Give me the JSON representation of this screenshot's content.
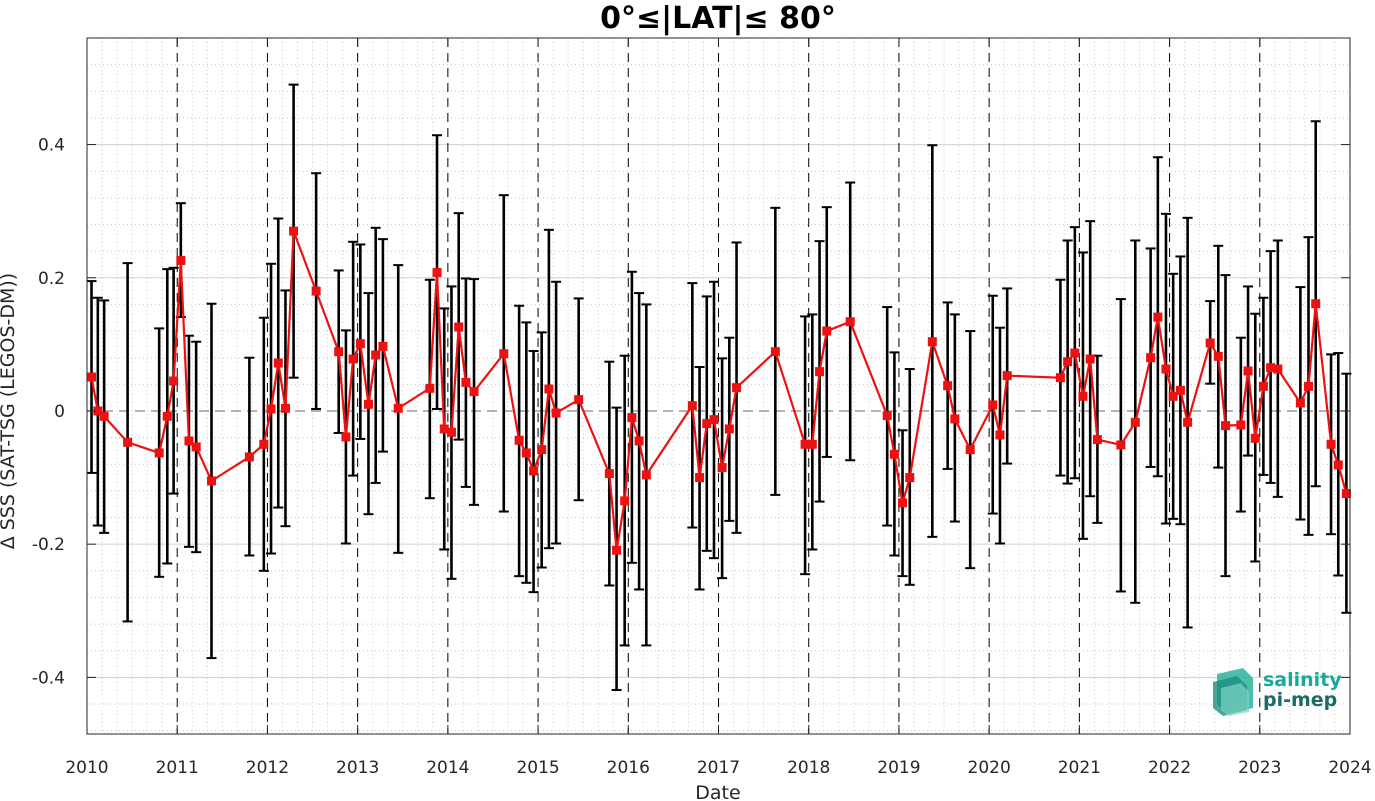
{
  "chart_data": {
    "type": "line",
    "title": "0°≤|LAT|≤ 80°",
    "xlabel": "Date",
    "ylabel": "Δ SSS (SAT-TSG (LEGOS-DM))",
    "xlim": [
      2010.0,
      2024.0
    ],
    "ylim": [
      -0.485,
      0.56
    ],
    "xticks": [
      2010,
      2011,
      2012,
      2013,
      2014,
      2015,
      2016,
      2017,
      2018,
      2019,
      2020,
      2021,
      2022,
      2023,
      2024
    ],
    "xtick_labels": [
      "2010",
      "2011",
      "2012",
      "2013",
      "2014",
      "2015",
      "2016",
      "2017",
      "2018",
      "2019",
      "2020",
      "2021",
      "2022",
      "2023",
      "2024"
    ],
    "yticks": [
      -0.4,
      -0.2,
      0,
      0.2,
      0.4
    ],
    "ytick_labels": [
      "-0.4",
      "-0.2",
      "0",
      "0.2",
      "0.4"
    ],
    "grid": true,
    "zero_line": 0,
    "year_boundary_lines": [
      2011,
      2012,
      2013,
      2014,
      2015,
      2016,
      2017,
      2018,
      2019,
      2020,
      2021,
      2022,
      2023
    ],
    "colors": {
      "series": "#ee1111",
      "error_bars": "#000000",
      "grid": "#c8c8c8",
      "zero_line": "#888888"
    },
    "series": [
      {
        "marker": "square",
        "points": [
          {
            "x": 2010.05,
            "y": 0.051,
            "lo": -0.093,
            "hi": 0.195
          },
          {
            "x": 2010.12,
            "y": 0.0,
            "lo": -0.172,
            "hi": 0.17
          },
          {
            "x": 2010.19,
            "y": -0.008,
            "lo": -0.183,
            "hi": 0.166
          },
          {
            "x": 2010.45,
            "y": -0.047,
            "lo": -0.316,
            "hi": 0.222
          },
          {
            "x": 2010.8,
            "y": -0.063,
            "lo": -0.249,
            "hi": 0.124
          },
          {
            "x": 2010.89,
            "y": -0.008,
            "lo": -0.229,
            "hi": 0.213
          },
          {
            "x": 2010.96,
            "y": 0.045,
            "lo": -0.124,
            "hi": 0.215
          },
          {
            "x": 2011.04,
            "y": 0.226,
            "lo": 0.141,
            "hi": 0.312
          },
          {
            "x": 2011.13,
            "y": -0.045,
            "lo": -0.204,
            "hi": 0.113
          },
          {
            "x": 2011.21,
            "y": -0.054,
            "lo": -0.212,
            "hi": 0.104
          },
          {
            "x": 2011.38,
            "y": -0.105,
            "lo": -0.371,
            "hi": 0.161
          },
          {
            "x": 2011.8,
            "y": -0.069,
            "lo": -0.217,
            "hi": 0.08
          },
          {
            "x": 2011.96,
            "y": -0.05,
            "lo": -0.24,
            "hi": 0.14
          },
          {
            "x": 2012.04,
            "y": 0.003,
            "lo": -0.214,
            "hi": 0.221
          },
          {
            "x": 2012.12,
            "y": 0.072,
            "lo": -0.145,
            "hi": 0.289
          },
          {
            "x": 2012.2,
            "y": 0.004,
            "lo": -0.173,
            "hi": 0.181
          },
          {
            "x": 2012.29,
            "y": 0.27,
            "lo": 0.05,
            "hi": 0.49
          },
          {
            "x": 2012.54,
            "y": 0.18,
            "lo": 0.003,
            "hi": 0.357
          },
          {
            "x": 2012.79,
            "y": 0.089,
            "lo": -0.033,
            "hi": 0.211
          },
          {
            "x": 2012.87,
            "y": -0.039,
            "lo": -0.199,
            "hi": 0.121
          },
          {
            "x": 2012.95,
            "y": 0.078,
            "lo": -0.097,
            "hi": 0.254
          },
          {
            "x": 2013.03,
            "y": 0.101,
            "lo": -0.042,
            "hi": 0.25
          },
          {
            "x": 2013.12,
            "y": 0.01,
            "lo": -0.155,
            "hi": 0.177
          },
          {
            "x": 2013.2,
            "y": 0.084,
            "lo": -0.108,
            "hi": 0.275
          },
          {
            "x": 2013.28,
            "y": 0.097,
            "lo": -0.061,
            "hi": 0.258
          },
          {
            "x": 2013.45,
            "y": 0.004,
            "lo": -0.213,
            "hi": 0.219
          },
          {
            "x": 2013.8,
            "y": 0.034,
            "lo": -0.131,
            "hi": 0.197
          },
          {
            "x": 2013.88,
            "y": 0.208,
            "lo": 0.003,
            "hi": 0.414
          },
          {
            "x": 2013.96,
            "y": -0.027,
            "lo": -0.208,
            "hi": 0.154
          },
          {
            "x": 2014.04,
            "y": -0.032,
            "lo": -0.252,
            "hi": 0.187
          },
          {
            "x": 2014.12,
            "y": 0.126,
            "lo": -0.043,
            "hi": 0.297
          },
          {
            "x": 2014.2,
            "y": 0.043,
            "lo": -0.114,
            "hi": 0.199
          },
          {
            "x": 2014.29,
            "y": 0.029,
            "lo": -0.141,
            "hi": 0.198
          },
          {
            "x": 2014.62,
            "y": 0.086,
            "lo": -0.151,
            "hi": 0.324
          },
          {
            "x": 2014.79,
            "y": -0.044,
            "lo": -0.248,
            "hi": 0.158
          },
          {
            "x": 2014.87,
            "y": -0.063,
            "lo": -0.258,
            "hi": 0.133
          },
          {
            "x": 2014.95,
            "y": -0.09,
            "lo": -0.272,
            "hi": 0.09
          },
          {
            "x": 2015.04,
            "y": -0.058,
            "lo": -0.235,
            "hi": 0.118
          },
          {
            "x": 2015.12,
            "y": 0.033,
            "lo": -0.206,
            "hi": 0.272
          },
          {
            "x": 2015.2,
            "y": -0.003,
            "lo": -0.199,
            "hi": 0.194
          },
          {
            "x": 2015.45,
            "y": 0.017,
            "lo": -0.134,
            "hi": 0.169
          },
          {
            "x": 2015.79,
            "y": -0.094,
            "lo": -0.262,
            "hi": 0.074
          },
          {
            "x": 2015.87,
            "y": -0.209,
            "lo": -0.419,
            "hi": 0.005
          },
          {
            "x": 2015.96,
            "y": -0.135,
            "lo": -0.352,
            "hi": 0.083
          },
          {
            "x": 2016.04,
            "y": -0.01,
            "lo": -0.228,
            "hi": 0.209
          },
          {
            "x": 2016.12,
            "y": -0.045,
            "lo": -0.268,
            "hi": 0.177
          },
          {
            "x": 2016.2,
            "y": -0.096,
            "lo": -0.352,
            "hi": 0.16
          },
          {
            "x": 2016.71,
            "y": 0.008,
            "lo": -0.175,
            "hi": 0.192
          },
          {
            "x": 2016.79,
            "y": -0.1,
            "lo": -0.268,
            "hi": 0.066
          },
          {
            "x": 2016.87,
            "y": -0.019,
            "lo": -0.21,
            "hi": 0.172
          },
          {
            "x": 2016.95,
            "y": -0.013,
            "lo": -0.221,
            "hi": 0.194
          },
          {
            "x": 2017.04,
            "y": -0.085,
            "lo": -0.251,
            "hi": 0.079
          },
          {
            "x": 2017.12,
            "y": -0.027,
            "lo": -0.165,
            "hi": 0.11
          },
          {
            "x": 2017.2,
            "y": 0.035,
            "lo": -0.183,
            "hi": 0.253
          },
          {
            "x": 2017.63,
            "y": 0.089,
            "lo": -0.126,
            "hi": 0.305
          },
          {
            "x": 2017.96,
            "y": -0.05,
            "lo": -0.245,
            "hi": 0.142
          },
          {
            "x": 2018.04,
            "y": -0.05,
            "lo": -0.208,
            "hi": 0.145
          },
          {
            "x": 2018.12,
            "y": 0.059,
            "lo": -0.136,
            "hi": 0.255
          },
          {
            "x": 2018.2,
            "y": 0.12,
            "lo": -0.069,
            "hi": 0.306
          },
          {
            "x": 2018.46,
            "y": 0.134,
            "lo": -0.074,
            "hi": 0.343
          },
          {
            "x": 2018.87,
            "y": -0.007,
            "lo": -0.172,
            "hi": 0.156
          },
          {
            "x": 2018.95,
            "y": -0.065,
            "lo": -0.217,
            "hi": 0.088
          },
          {
            "x": 2019.04,
            "y": -0.138,
            "lo": -0.248,
            "hi": -0.029
          },
          {
            "x": 2019.12,
            "y": -0.1,
            "lo": -0.261,
            "hi": 0.063
          },
          {
            "x": 2019.37,
            "y": 0.104,
            "lo": -0.189,
            "hi": 0.399
          },
          {
            "x": 2019.54,
            "y": 0.038,
            "lo": -0.087,
            "hi": 0.163
          },
          {
            "x": 2019.62,
            "y": -0.012,
            "lo": -0.166,
            "hi": 0.145
          },
          {
            "x": 2019.79,
            "y": -0.058,
            "lo": -0.236,
            "hi": 0.12
          },
          {
            "x": 2020.04,
            "y": 0.009,
            "lo": -0.154,
            "hi": 0.173
          },
          {
            "x": 2020.12,
            "y": -0.036,
            "lo": -0.199,
            "hi": 0.125
          },
          {
            "x": 2020.2,
            "y": 0.053,
            "lo": -0.079,
            "hi": 0.184
          },
          {
            "x": 2020.79,
            "y": 0.05,
            "lo": -0.097,
            "hi": 0.197
          },
          {
            "x": 2020.87,
            "y": 0.074,
            "lo": -0.109,
            "hi": 0.256
          },
          {
            "x": 2020.95,
            "y": 0.087,
            "lo": -0.101,
            "hi": 0.276
          },
          {
            "x": 2021.04,
            "y": 0.022,
            "lo": -0.192,
            "hi": 0.238
          },
          {
            "x": 2021.12,
            "y": 0.078,
            "lo": -0.128,
            "hi": 0.285
          },
          {
            "x": 2021.2,
            "y": -0.043,
            "lo": -0.168,
            "hi": 0.083
          },
          {
            "x": 2021.46,
            "y": -0.051,
            "lo": -0.271,
            "hi": 0.168
          },
          {
            "x": 2021.62,
            "y": -0.017,
            "lo": -0.288,
            "hi": 0.256
          },
          {
            "x": 2021.79,
            "y": 0.08,
            "lo": -0.084,
            "hi": 0.244
          },
          {
            "x": 2021.87,
            "y": 0.141,
            "lo": -0.098,
            "hi": 0.381
          },
          {
            "x": 2021.96,
            "y": 0.063,
            "lo": -0.169,
            "hi": 0.296
          },
          {
            "x": 2022.04,
            "y": 0.022,
            "lo": -0.162,
            "hi": 0.206
          },
          {
            "x": 2022.12,
            "y": 0.031,
            "lo": -0.17,
            "hi": 0.232
          },
          {
            "x": 2022.2,
            "y": -0.017,
            "lo": -0.325,
            "hi": 0.29
          },
          {
            "x": 2022.45,
            "y": 0.102,
            "lo": 0.041,
            "hi": 0.165
          },
          {
            "x": 2022.54,
            "y": 0.082,
            "lo": -0.085,
            "hi": 0.248
          },
          {
            "x": 2022.62,
            "y": -0.022,
            "lo": -0.248,
            "hi": 0.204
          },
          {
            "x": 2022.79,
            "y": -0.021,
            "lo": -0.151,
            "hi": 0.11
          },
          {
            "x": 2022.87,
            "y": 0.06,
            "lo": -0.067,
            "hi": 0.187
          },
          {
            "x": 2022.95,
            "y": -0.041,
            "lo": -0.226,
            "hi": 0.146
          },
          {
            "x": 2023.04,
            "y": 0.037,
            "lo": -0.096,
            "hi": 0.17
          },
          {
            "x": 2023.12,
            "y": 0.065,
            "lo": -0.108,
            "hi": 0.24
          },
          {
            "x": 2023.2,
            "y": 0.063,
            "lo": -0.129,
            "hi": 0.256
          },
          {
            "x": 2023.45,
            "y": 0.012,
            "lo": -0.163,
            "hi": 0.186
          },
          {
            "x": 2023.54,
            "y": 0.037,
            "lo": -0.186,
            "hi": 0.261
          },
          {
            "x": 2023.62,
            "y": 0.161,
            "lo": -0.113,
            "hi": 0.435
          },
          {
            "x": 2023.79,
            "y": -0.05,
            "lo": -0.185,
            "hi": 0.085
          },
          {
            "x": 2023.87,
            "y": -0.081,
            "lo": -0.247,
            "hi": 0.087
          },
          {
            "x": 2023.96,
            "y": -0.124,
            "lo": -0.303,
            "hi": 0.056
          }
        ]
      }
    ]
  },
  "logo": {
    "line1": "salinity",
    "line2": "pi-mep",
    "color_line1": "#1aa89a",
    "color_line2": "#1a6b66"
  }
}
